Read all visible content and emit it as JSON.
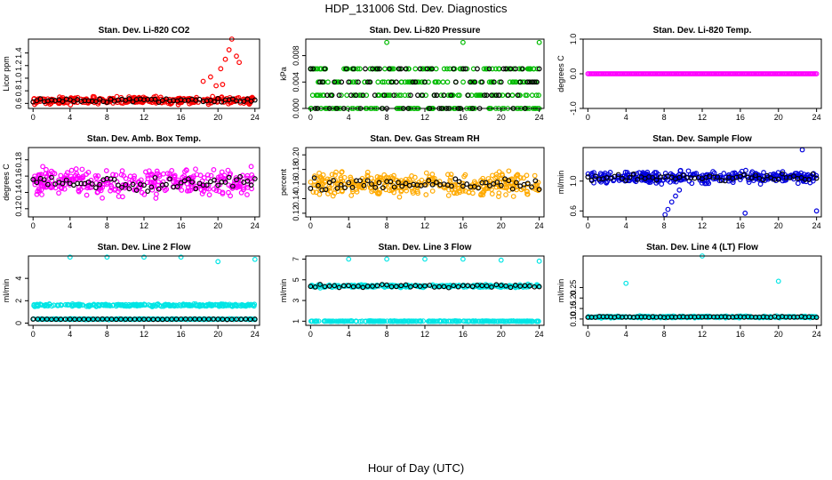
{
  "title": "HDP_131006  Std. Dev. Diagnostics",
  "xlabel": "Hour of Day (UTC)",
  "chart_data": [
    {
      "type": "scatter",
      "title": "Stan. Dev. Li-820 CO2",
      "ylabel": "Licor ppm",
      "ylim": [
        0.52,
        1.62
      ],
      "yticks": [
        "0.6",
        "0.8",
        "1.0",
        "1.2",
        "1.4"
      ],
      "ytickvals": [
        0.6,
        0.8,
        1.0,
        1.2,
        1.4
      ],
      "xlim": [
        -0.5,
        24.5
      ],
      "xticks": [
        0,
        4,
        8,
        12,
        16,
        20,
        24
      ],
      "color": "#ff0000",
      "base": 0.65,
      "spread": 0.05,
      "black_base": 0.65,
      "outliers": [
        [
          18.4,
          0.95
        ],
        [
          19.2,
          1.02
        ],
        [
          20.3,
          1.15
        ],
        [
          20.8,
          1.3
        ],
        [
          21.2,
          1.45
        ],
        [
          21.5,
          1.62
        ],
        [
          22.0,
          1.35
        ],
        [
          22.3,
          1.25
        ],
        [
          19.8,
          0.88
        ],
        [
          20.5,
          0.9
        ]
      ]
    },
    {
      "type": "scatter",
      "title": "Stan. Dev. Li-820 Pressure",
      "ylabel": "kPa",
      "ylim": [
        0,
        0.0105
      ],
      "yticks": [
        "0.000",
        "0.004",
        "0.008"
      ],
      "ytickvals": [
        0,
        0.004,
        0.008
      ],
      "xlim": [
        -0.5,
        24.5
      ],
      "xticks": [
        0,
        4,
        8,
        12,
        16,
        20,
        24
      ],
      "color": "#00bb00",
      "levels": [
        0,
        0.002,
        0.004,
        0.006
      ],
      "outliers": [
        [
          8.0,
          0.01
        ],
        [
          16.0,
          0.01
        ],
        [
          24.0,
          0.01
        ]
      ]
    },
    {
      "type": "scatter",
      "title": "Stan. Dev. Li-820 Temp.",
      "ylabel": "degrees C",
      "ylim": [
        -1,
        1
      ],
      "yticks": [
        "-1.0",
        "0.0",
        "1.0"
      ],
      "ytickvals": [
        -1,
        0,
        1
      ],
      "xlim": [
        -0.5,
        24.5
      ],
      "xticks": [
        0,
        4,
        8,
        12,
        16,
        20,
        24
      ],
      "color": "#ff00ff",
      "const": 0.0
    },
    {
      "type": "scatter",
      "title": "Stan. Dev. Amb. Box Temp.",
      "ylabel": "degrees C",
      "ylim": [
        0.11,
        0.195
      ],
      "yticks": [
        "0.12",
        "0.14",
        "0.16",
        "0.18"
      ],
      "ytickvals": [
        0.12,
        0.14,
        0.16,
        0.18
      ],
      "xlim": [
        -0.5,
        24.5
      ],
      "xticks": [
        0,
        4,
        8,
        12,
        16,
        20,
        24
      ],
      "color": "#ff00ff",
      "base": 0.152,
      "spread": 0.014,
      "black_base": 0.152
    },
    {
      "type": "scatter",
      "title": "Stan. Dev. Gas Stream RH",
      "ylabel": "percent",
      "ylim": [
        0.115,
        0.21
      ],
      "yticks": [
        "0.12",
        "0.14",
        "0.16",
        "0.18",
        "0.20"
      ],
      "ytickvals": [
        0.12,
        0.14,
        0.16,
        0.18,
        0.2
      ],
      "xlim": [
        -0.5,
        24.5
      ],
      "xticks": [
        0,
        4,
        8,
        12,
        16,
        20,
        24
      ],
      "color": "#ffaa00",
      "base": 0.16,
      "spread": 0.015,
      "black_base": 0.16
    },
    {
      "type": "scatter",
      "title": "Stan. Dev. Sample Flow",
      "ylabel": "ml/min",
      "ylim": [
        0.52,
        1.45
      ],
      "yticks": [
        "0.6",
        "1.0"
      ],
      "ytickvals": [
        0.6,
        1.0
      ],
      "xlim": [
        -0.5,
        24.5
      ],
      "xticks": [
        0,
        4,
        8,
        12,
        16,
        20,
        24
      ],
      "color": "#0000dd",
      "base": 1.05,
      "spread": 0.07,
      "black_base": 1.05,
      "outliers": [
        [
          8.1,
          0.55
        ],
        [
          8.4,
          0.62
        ],
        [
          8.8,
          0.72
        ],
        [
          9.2,
          0.8
        ],
        [
          9.6,
          0.88
        ],
        [
          16.5,
          0.57
        ],
        [
          24.0,
          0.6
        ],
        [
          22.5,
          1.42
        ]
      ]
    },
    {
      "type": "scatter",
      "title": "Stan. Dev. Line 2 Flow",
      "ylabel": "ml/min",
      "ylim": [
        -0.2,
        6.0
      ],
      "yticks": [
        "0",
        "2",
        "4"
      ],
      "ytickvals": [
        0,
        2,
        4
      ],
      "xlim": [
        -0.5,
        24.5
      ],
      "xticks": [
        0,
        4,
        8,
        12,
        16,
        20,
        24
      ],
      "color": "#00e5e5",
      "bands": [
        [
          1.6,
          0.15
        ],
        [
          0.35,
          0.05
        ]
      ],
      "black_base": 0.35,
      "outliers": [
        [
          4.0,
          5.9
        ],
        [
          8.0,
          5.9
        ],
        [
          12.0,
          5.9
        ],
        [
          16.0,
          5.9
        ],
        [
          20.0,
          5.5
        ],
        [
          24.0,
          5.7
        ]
      ]
    },
    {
      "type": "scatter",
      "title": "Stan. Dev. Line 3 Flow",
      "ylabel": "ml/min",
      "ylim": [
        0.6,
        7.3
      ],
      "yticks": [
        "1",
        "3",
        "5",
        "7"
      ],
      "ytickvals": [
        1,
        3,
        5,
        7
      ],
      "xlim": [
        -0.5,
        24.5
      ],
      "xticks": [
        0,
        4,
        8,
        12,
        16,
        20,
        24
      ],
      "color": "#00e5e5",
      "bands": [
        [
          4.4,
          0.2
        ],
        [
          1.0,
          0.04
        ]
      ],
      "black_base": 4.4,
      "outliers": [
        [
          4.0,
          7.0
        ],
        [
          8.0,
          7.0
        ],
        [
          12.0,
          7.0
        ],
        [
          16.0,
          7.0
        ],
        [
          20.0,
          6.9
        ],
        [
          24.0,
          6.8
        ]
      ]
    },
    {
      "type": "scatter",
      "title": "Stan. Dev. Line 4 (LT) Flow",
      "ylabel": "ml/min",
      "ylim": [
        0.07,
        0.4
      ],
      "yticks": [
        "0.10",
        "0.15",
        "0.20",
        "0.25"
      ],
      "ytickvals": [
        0.1,
        0.15,
        0.2,
        0.25
      ],
      "xlim": [
        -0.5,
        24.5
      ],
      "xticks": [
        0,
        4,
        8,
        12,
        16,
        20,
        24
      ],
      "color": "#00e5e5",
      "base": 0.11,
      "spread": 0.004,
      "black_base": 0.11,
      "outliers": [
        [
          4.0,
          0.27
        ],
        [
          12.0,
          0.4
        ],
        [
          20.0,
          0.28
        ]
      ]
    }
  ]
}
